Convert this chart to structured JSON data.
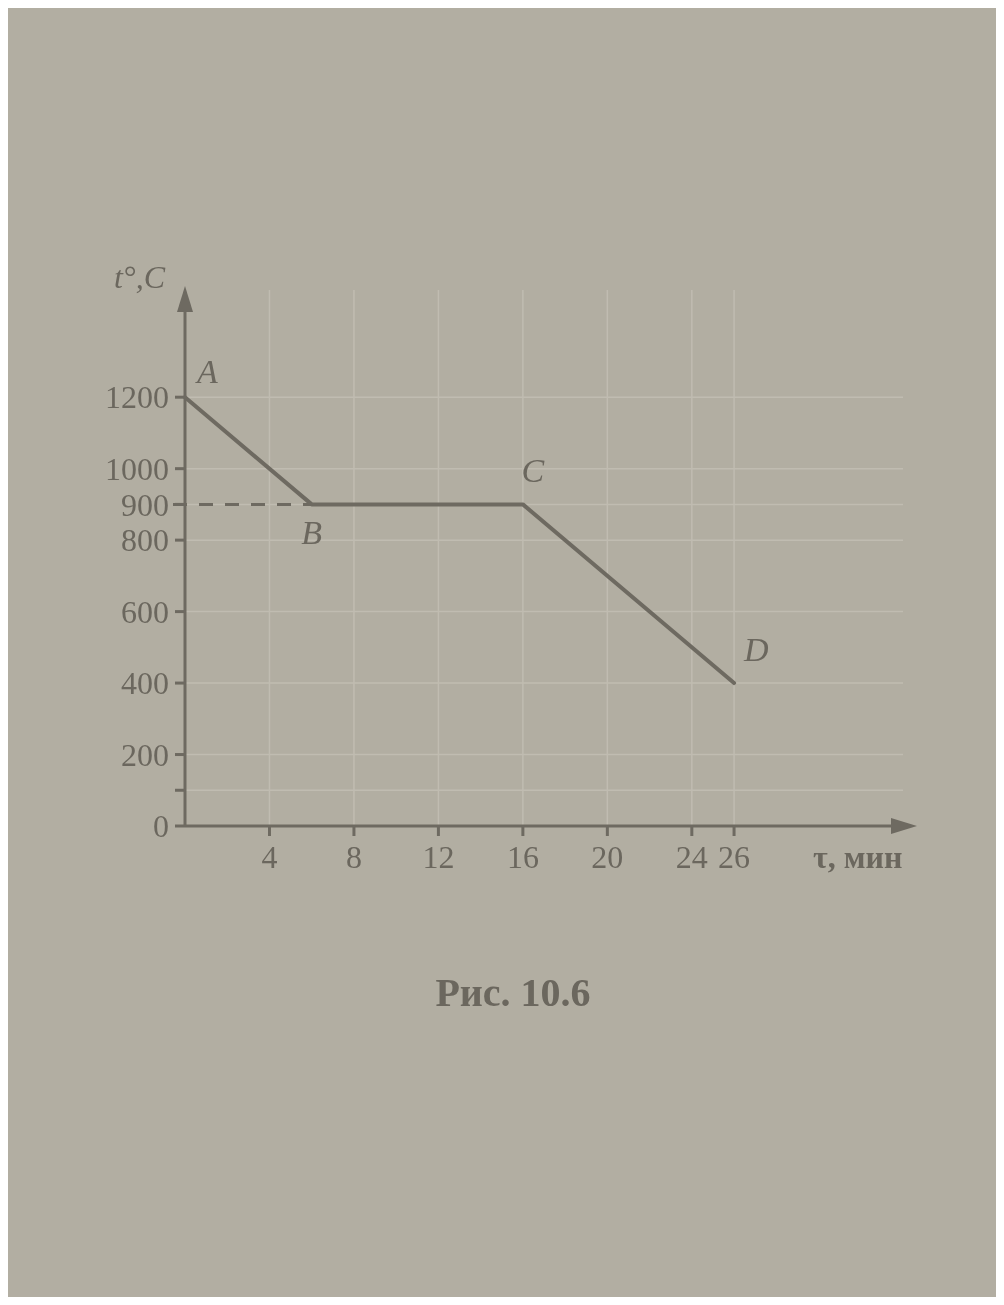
{
  "chart_data": {
    "type": "line",
    "title": "Рис. 10.6",
    "xlabel": "τ, мин",
    "ylabel": "t°,C",
    "x": [
      0,
      6,
      16,
      26
    ],
    "series": [
      {
        "color": "#6e6a61",
        "values": [
          1200,
          900,
          900,
          400
        ]
      }
    ],
    "xlim": [
      0,
      34
    ],
    "xticks": [
      4,
      8,
      12,
      16,
      20,
      24,
      26
    ],
    "ylim": [
      0,
      1500
    ],
    "yticks": [
      0,
      {
        "value": 100,
        "label": null
      },
      200,
      400,
      600,
      800,
      900,
      1000,
      1200
    ],
    "grid": true,
    "ref_lines": [
      {
        "axis": "y",
        "value": 900,
        "line_style": "dashed",
        "color": "#6e6a61"
      }
    ],
    "annotations": [
      {
        "text": "A",
        "x": 0,
        "y": 1200
      },
      {
        "text": "B",
        "x": 6,
        "y": 900
      },
      {
        "text": "C",
        "x": 16,
        "y": 900
      },
      {
        "text": "D",
        "x": 26,
        "y": 400
      }
    ]
  }
}
